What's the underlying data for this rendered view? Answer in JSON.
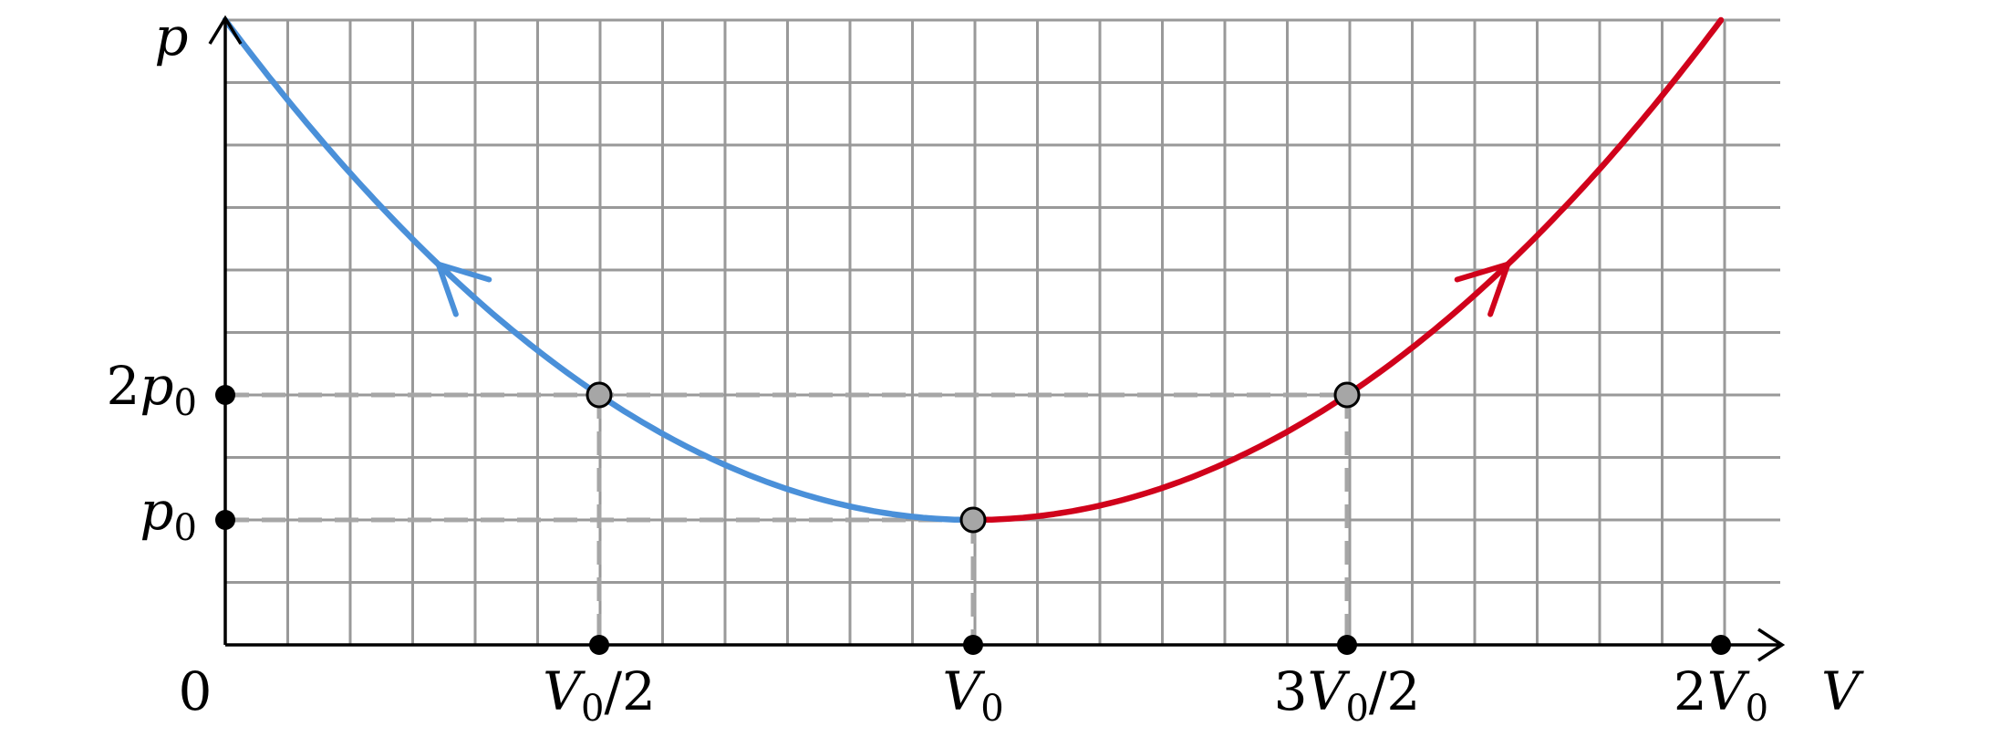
{
  "axes": {
    "x_label": "V",
    "y_label": "p",
    "origin_label": "0"
  },
  "x_ticks": [
    {
      "main": "V",
      "sub": "0",
      "rest": "/2",
      "pre": "",
      "value": 0.5
    },
    {
      "main": "V",
      "sub": "0",
      "rest": "",
      "pre": "",
      "value": 1
    },
    {
      "main": "V",
      "sub": "0",
      "rest": "/2",
      "pre": "3",
      "value": 1.5
    },
    {
      "main": "V",
      "sub": "0",
      "rest": "",
      "pre": "2",
      "value": 2
    }
  ],
  "y_ticks": [
    {
      "pre": "",
      "main": "p",
      "sub": "0",
      "value": 1
    },
    {
      "pre": "2",
      "main": "p",
      "sub": "0",
      "value": 2
    }
  ],
  "state_points": [
    {
      "V": 0.5,
      "p": 2
    },
    {
      "V": 1,
      "p": 1
    },
    {
      "V": 1.5,
      "p": 2
    }
  ],
  "curves": [
    {
      "name": "",
      "color": "#4a90d9",
      "V_range": [
        0,
        1
      ],
      "relation": "p = p0 * (1 + 4*(V/V0 - 1)^2)"
    },
    {
      "name": "",
      "color": "#d0021b",
      "V_range": [
        1,
        2
      ],
      "relation": "p = p0 * (1 + 4*(V/V0 - 1)^2)"
    }
  ],
  "colors": {
    "blue_curve": "#4a90d9",
    "red_curve": "#d0021b",
    "grid": "#999999",
    "guides": "#a6a6a6"
  }
}
